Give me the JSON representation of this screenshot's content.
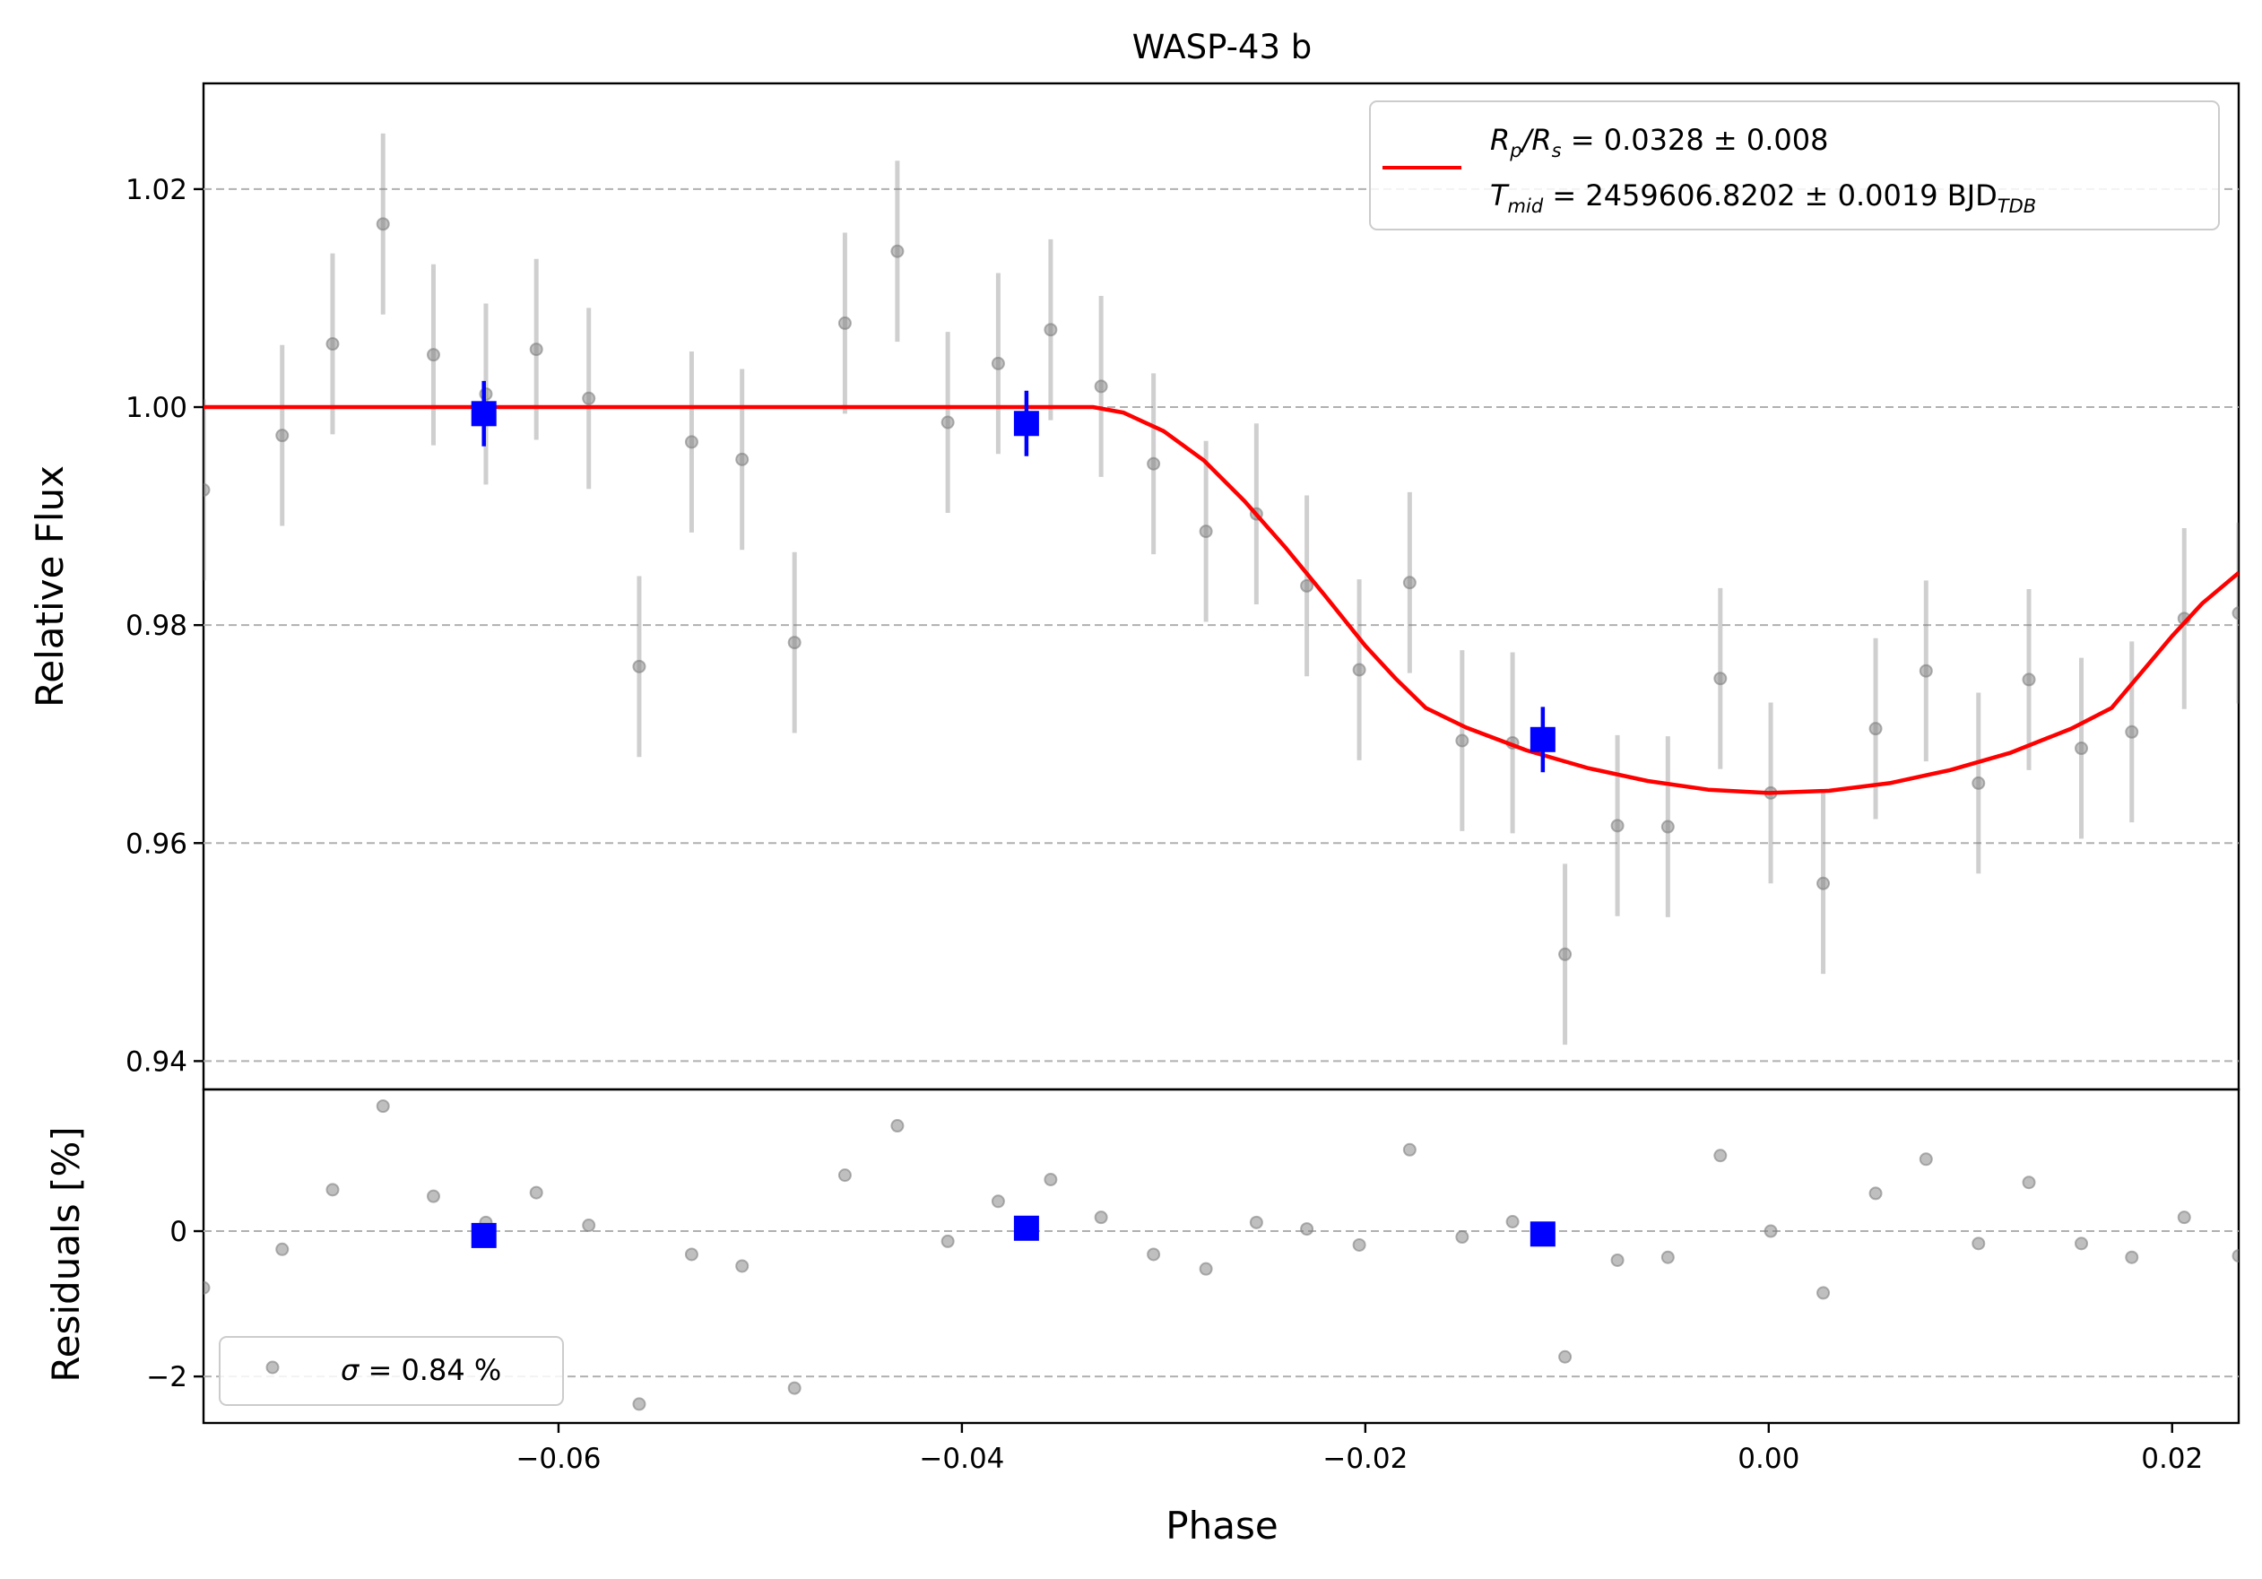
{
  "chart_data": [
    {
      "type": "scatter",
      "panel": "main",
      "title": "WASP-43 b",
      "xlabel": "",
      "ylabel": "Relative Flux",
      "xlim": [
        -0.0776,
        0.0233
      ],
      "ylim": [
        0.9374,
        1.0297
      ],
      "yticks": [
        0.94,
        0.96,
        0.98,
        1.0,
        1.02
      ],
      "ytick_labels": [
        "0.94",
        "0.96",
        "0.98",
        "1.00",
        "1.02"
      ],
      "grid": "horizontal dashed",
      "legend": {
        "placement": "top-right",
        "line1": {
          "prefix": "R",
          "sub1": "p",
          "mid": "/R",
          "sub2": "s",
          "value": " = 0.0328 ± 0.008"
        },
        "line2": {
          "prefix": "T",
          "sub1": "mid",
          "value": " = 2459606.8202 ± 0.0019 BJD",
          "sub2": "TDB"
        }
      },
      "series": [
        {
          "kind": "raw",
          "color": "#808080",
          "x": [
            -0.0776,
            -0.0737,
            -0.0712,
            -0.0687,
            -0.0662,
            -0.0636,
            -0.0611,
            -0.0585,
            -0.056,
            -0.0534,
            -0.0509,
            -0.0483,
            -0.0458,
            -0.0432,
            -0.0407,
            -0.0382,
            -0.0356,
            -0.0331,
            -0.0305,
            -0.0279,
            -0.0254,
            -0.0229,
            -0.0203,
            -0.0178,
            -0.0152,
            -0.0127,
            -0.0101,
            -0.0075,
            -0.005,
            -0.0024,
            0.0001,
            0.0027,
            0.0053,
            0.0078,
            0.0104,
            0.0129,
            0.0155,
            0.018,
            0.0206,
            0.0233
          ],
          "y": [
            0.9924,
            0.9974,
            1.0058,
            1.0168,
            1.0048,
            1.0012,
            1.0053,
            1.0008,
            0.9762,
            0.9968,
            0.9952,
            0.9784,
            1.0077,
            1.0143,
            0.9986,
            1.004,
            1.0071,
            1.0019,
            0.9948,
            0.9886,
            0.9902,
            0.9836,
            0.9759,
            0.9839,
            0.9694,
            0.9692,
            0.9498,
            0.9616,
            0.9615,
            0.9751,
            0.9646,
            0.9563,
            0.9705,
            0.9758,
            0.9655,
            0.975,
            0.9687,
            0.9702,
            0.9806,
            0.9811
          ],
          "err": 0.0083
        },
        {
          "kind": "binned",
          "color": "#0000ff",
          "x": [
            -0.0637,
            -0.0368,
            -0.0112
          ],
          "y": [
            0.9994,
            0.9985,
            0.9695
          ],
          "err": [
            0.003,
            0.003,
            0.003
          ]
        },
        {
          "kind": "model",
          "name": "transit model",
          "color": "#ff0000",
          "x": [
            -0.0776,
            -0.0335,
            -0.032,
            -0.03,
            -0.028,
            -0.026,
            -0.024,
            -0.022,
            -0.02,
            -0.0185,
            -0.017,
            -0.015,
            -0.012,
            -0.009,
            -0.006,
            -0.003,
            0.0,
            0.003,
            0.006,
            0.009,
            0.012,
            0.015,
            0.017,
            0.0185,
            0.02,
            0.0215,
            0.0233
          ],
          "y": [
            1.0,
            1.0,
            0.9995,
            0.9978,
            0.9951,
            0.9914,
            0.9872,
            0.9827,
            0.9781,
            0.9751,
            0.9724,
            0.9706,
            0.9685,
            0.9669,
            0.9657,
            0.9649,
            0.9646,
            0.9648,
            0.9655,
            0.9667,
            0.9683,
            0.9705,
            0.9724,
            0.9757,
            0.979,
            0.982,
            0.9848
          ]
        }
      ]
    },
    {
      "type": "scatter",
      "panel": "residuals",
      "title": "",
      "xlabel": "Phase",
      "ylabel": "Residuals [%]",
      "xlim": [
        -0.0776,
        0.0233
      ],
      "ylim": [
        -2.64,
        1.95
      ],
      "yticks": [
        -2,
        0
      ],
      "ytick_labels": [
        "−2",
        "0"
      ],
      "xticks": [
        -0.06,
        -0.04,
        -0.02,
        0.0,
        0.02
      ],
      "xtick_labels": [
        "−0.06",
        "−0.04",
        "−0.02",
        "0.00",
        "0.02"
      ],
      "grid": "horizontal dashed",
      "legend": {
        "placement": "bottom-left",
        "symbol": "σ",
        "value": " = 0.84 %"
      },
      "series": [
        {
          "kind": "raw",
          "color": "#808080",
          "x": [
            -0.0776,
            -0.0737,
            -0.0712,
            -0.0687,
            -0.0662,
            -0.0636,
            -0.0611,
            -0.0585,
            -0.056,
            -0.0534,
            -0.0509,
            -0.0483,
            -0.0458,
            -0.0432,
            -0.0407,
            -0.0382,
            -0.0356,
            -0.0331,
            -0.0305,
            -0.0279,
            -0.0254,
            -0.0229,
            -0.0203,
            -0.0178,
            -0.0152,
            -0.0127,
            -0.0101,
            -0.0075,
            -0.005,
            -0.0024,
            0.0001,
            0.0027,
            0.0053,
            0.0078,
            0.0104,
            0.0129,
            0.0155,
            0.018,
            0.0206,
            0.0233
          ],
          "y": [
            -0.78,
            -0.25,
            0.57,
            1.72,
            0.48,
            0.12,
            0.53,
            0.08,
            -2.38,
            -0.32,
            -0.48,
            -2.16,
            0.77,
            1.45,
            -0.14,
            0.41,
            0.71,
            0.19,
            -0.32,
            -0.52,
            0.12,
            0.03,
            -0.19,
            1.12,
            -0.08,
            0.13,
            -1.73,
            -0.4,
            -0.36,
            1.04,
            0.0,
            -0.85,
            0.52,
            0.99,
            -0.17,
            0.67,
            -0.17,
            -0.36,
            0.19,
            -0.34
          ]
        },
        {
          "kind": "binned",
          "color": "#0000ff",
          "x": [
            -0.0637,
            -0.0368,
            -0.0112
          ],
          "y": [
            -0.06,
            0.04,
            -0.04
          ]
        }
      ]
    }
  ]
}
